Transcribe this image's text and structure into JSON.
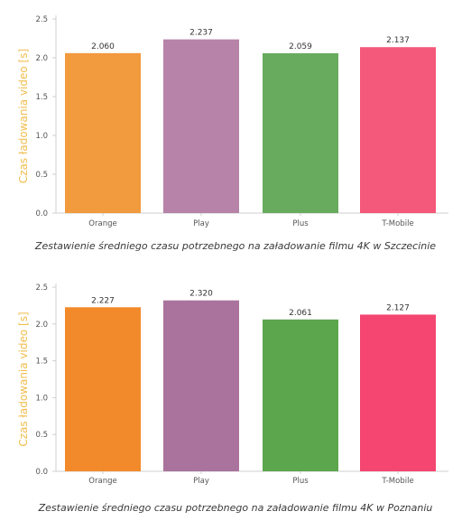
{
  "chart_data": [
    {
      "type": "bar",
      "categories": [
        "Orange",
        "Play",
        "Plus",
        "T-Mobile"
      ],
      "values": [
        2.06,
        2.237,
        2.059,
        2.137
      ],
      "value_labels": [
        "2.060",
        "2.237",
        "2.059",
        "2.137"
      ],
      "ylabel": "Czas ładowania video [s]",
      "ylim": [
        0,
        2.5
      ],
      "yticks": [
        "0.0",
        "0.5",
        "1.0",
        "1.5",
        "2.0",
        "2.5"
      ],
      "colors": [
        "#f29a3e",
        "#b783a8",
        "#68ab5e",
        "#f4587a"
      ],
      "grid": false,
      "caption": "Zestawienie średniego czasu potrzebnego na załadowanie filmu 4K w Szczecinie"
    },
    {
      "type": "bar",
      "categories": [
        "Orange",
        "Play",
        "Plus",
        "T-Mobile"
      ],
      "values": [
        2.227,
        2.32,
        2.061,
        2.127
      ],
      "value_labels": [
        "2.227",
        "2.320",
        "2.061",
        "2.127"
      ],
      "ylabel": "Czas ładowania video [s]",
      "ylim": [
        0,
        2.5
      ],
      "yticks": [
        "0.0",
        "0.5",
        "1.0",
        "1.5",
        "2.0",
        "2.5"
      ],
      "colors": [
        "#f28a2b",
        "#aa739d",
        "#5ca64d",
        "#f44671"
      ],
      "grid": false,
      "caption": "Zestawienie średniego czasu potrzebnego na załadowanie filmu 4K w Poznaniu"
    }
  ]
}
